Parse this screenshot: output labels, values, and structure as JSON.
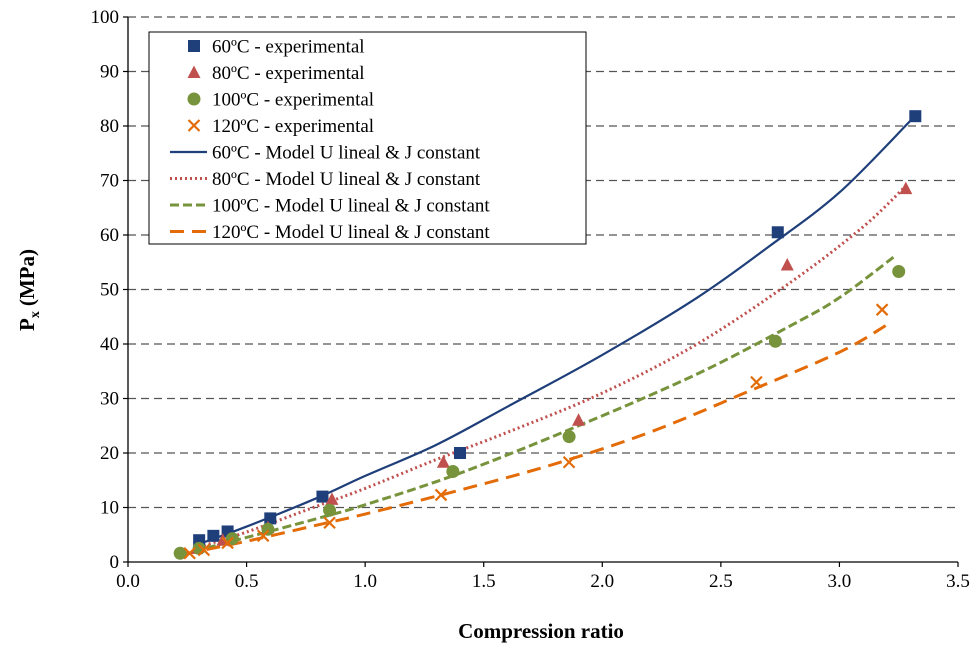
{
  "chart_data": {
    "type": "scatter",
    "xlabel": "Compression ratio",
    "ylabel": "P",
    "ylabel_sub": "x",
    "ylabel_unit": "(MPa)",
    "xlim": [
      0,
      3.5
    ],
    "ylim": [
      0,
      100
    ],
    "xticks": [
      0,
      0.5,
      1,
      1.5,
      2,
      2.5,
      3,
      3.5
    ],
    "xtick_labels": [
      "0.0",
      "0.5",
      "1.0",
      "1.5",
      "2.0",
      "2.5",
      "3.0",
      "3.5"
    ],
    "yticks": [
      0,
      10,
      20,
      30,
      40,
      50,
      60,
      70,
      80,
      90,
      100
    ],
    "ytick_labels": [
      "0",
      "10",
      "20",
      "30",
      "40",
      "50",
      "60",
      "70",
      "80",
      "90",
      "100"
    ],
    "grid": "horizontal dashed",
    "legend_position": "top-left",
    "series": [
      {
        "name": "60ºC - experimental",
        "kind": "markers",
        "marker": "square",
        "color": "#1f3f7a",
        "x": [
          0.3,
          0.36,
          0.42,
          0.6,
          0.82,
          1.4,
          2.74,
          3.32
        ],
        "y": [
          4.0,
          4.8,
          5.6,
          8.0,
          12.0,
          20.0,
          60.5,
          81.8
        ]
      },
      {
        "name": "80ºC - experimental",
        "kind": "markers",
        "marker": "triangle",
        "color": "#c0504d",
        "x": [
          0.29,
          0.4,
          0.59,
          0.86,
          1.33,
          1.9,
          2.78,
          3.28
        ],
        "y": [
          2.5,
          4.0,
          6.3,
          11.5,
          18.3,
          26.0,
          54.5,
          68.5
        ]
      },
      {
        "name": "100ºC - experimental",
        "kind": "markers",
        "marker": "circle",
        "color": "#77933c",
        "x": [
          0.22,
          0.3,
          0.44,
          0.59,
          0.85,
          1.37,
          1.86,
          2.73,
          3.25
        ],
        "y": [
          1.6,
          2.5,
          4.3,
          6.0,
          9.5,
          16.6,
          23.0,
          40.5,
          53.3
        ]
      },
      {
        "name": "120ºC - experimental",
        "kind": "markers",
        "marker": "x",
        "color": "#e36c09",
        "x": [
          0.26,
          0.32,
          0.42,
          0.57,
          0.85,
          1.32,
          1.86,
          2.65,
          3.18
        ],
        "y": [
          1.6,
          2.2,
          3.5,
          4.8,
          7.2,
          12.3,
          18.3,
          33.0,
          46.3
        ]
      },
      {
        "name": "60ºC - Model U lineal & J constant",
        "kind": "line",
        "dash": "solid",
        "color": "#1f3f7a",
        "x": [
          0.28,
          0.5,
          0.8,
          1.0,
          1.3,
          1.6,
          2.0,
          2.4,
          2.7,
          3.0,
          3.3
        ],
        "y": [
          3.0,
          6.5,
          11.8,
          15.8,
          21.5,
          28.5,
          38.0,
          48.5,
          57.8,
          67.8,
          81.0
        ]
      },
      {
        "name": "80ºC - Model U lineal & J constant",
        "kind": "line",
        "dash": "dot",
        "color": "#c0504d",
        "x": [
          0.28,
          0.5,
          0.8,
          1.0,
          1.3,
          1.6,
          2.0,
          2.4,
          2.8,
          3.1,
          3.28
        ],
        "y": [
          2.5,
          5.5,
          10.3,
          13.5,
          18.8,
          23.8,
          31.0,
          40.0,
          51.5,
          61.5,
          69.0
        ]
      },
      {
        "name": "100ºC - Model U lineal & J constant",
        "kind": "line",
        "dash": "dash",
        "color": "#77933c",
        "x": [
          0.28,
          0.5,
          0.8,
          1.0,
          1.4,
          1.9,
          2.4,
          2.8,
          3.0,
          3.23
        ],
        "y": [
          2.0,
          4.5,
          8.0,
          10.5,
          16.3,
          25.0,
          34.5,
          43.5,
          48.5,
          56.0
        ]
      },
      {
        "name": "120ºC - Model U lineal & J constant",
        "kind": "line",
        "dash": "longdash",
        "color": "#e36c09",
        "x": [
          0.24,
          0.5,
          0.8,
          1.0,
          1.4,
          1.8,
          2.2,
          2.6,
          3.0,
          3.2
        ],
        "y": [
          1.5,
          3.8,
          6.8,
          8.8,
          13.2,
          18.0,
          23.8,
          31.0,
          38.5,
          43.5
        ]
      }
    ]
  }
}
